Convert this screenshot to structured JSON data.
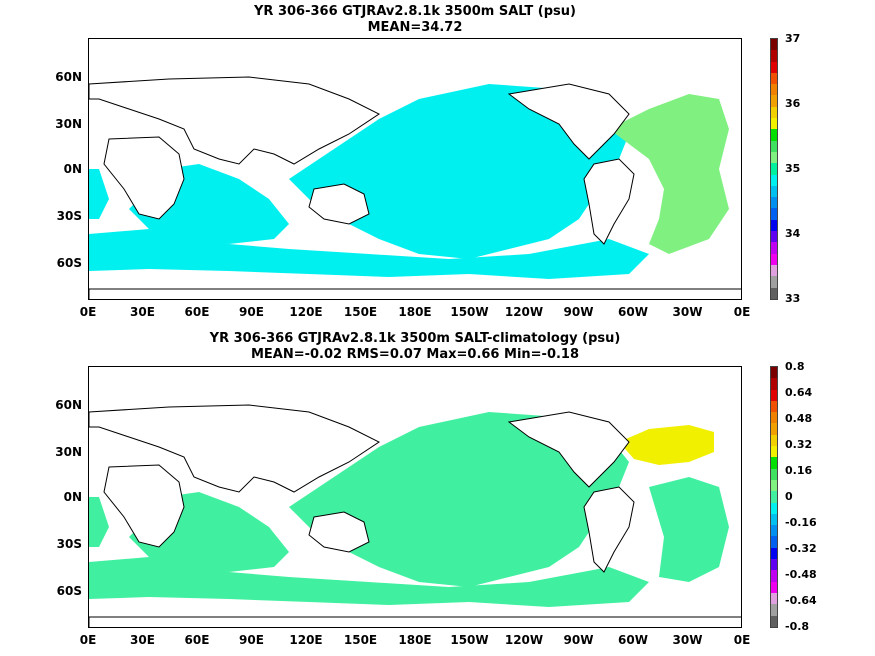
{
  "panels": [
    {
      "title_line1": "YR 306-366 GTJRAv2.8.1k 3500m SALT (psu)",
      "title_line2": "MEAN=34.72",
      "ocean_color": "#00f0f0",
      "atlantic_color": "#80f080",
      "colorbar": {
        "labels": [
          "37",
          "36",
          "35",
          "34",
          "33"
        ],
        "colors": [
          "#7a0000",
          "#b00000",
          "#e00000",
          "#f05000",
          "#f08000",
          "#f0a000",
          "#f0d000",
          "#f0f000",
          "#00e000",
          "#40e060",
          "#80f080",
          "#00f0a0",
          "#00f0f0",
          "#00c0f0",
          "#0090f0",
          "#0060f0",
          "#0000f0",
          "#6000f0",
          "#c000f0",
          "#f000f0",
          "#e0a0e0",
          "#a0a0a0",
          "#606060"
        ]
      }
    },
    {
      "title_line1": "YR 306-366 GTJRAv2.8.1k 3500m SALT-climatology (psu)",
      "title_line2": "MEAN=-0.02   RMS=0.07   Max=0.66   Min=-0.18",
      "ocean_color": "#40f0a0",
      "atlantic_color": "#f0f000",
      "colorbar": {
        "labels": [
          "0.8",
          "0.64",
          "0.48",
          "0.32",
          "0.16",
          "0",
          "-0.16",
          "-0.32",
          "-0.48",
          "-0.64",
          "-0.8"
        ],
        "colors": [
          "#7a0000",
          "#b00000",
          "#e00000",
          "#f05000",
          "#f08000",
          "#f0a000",
          "#f0d000",
          "#f0f000",
          "#00e000",
          "#40e060",
          "#80f080",
          "#40f0a0",
          "#00f0f0",
          "#00c0f0",
          "#0090f0",
          "#0060f0",
          "#0000f0",
          "#6000f0",
          "#c000f0",
          "#f000f0",
          "#e0a0e0",
          "#a0a0a0",
          "#606060"
        ]
      }
    }
  ],
  "lat_labels": [
    "60N",
    "30N",
    "0N",
    "30S",
    "60S"
  ],
  "lon_labels": [
    "0E",
    "30E",
    "60E",
    "90E",
    "120E",
    "150E",
    "180E",
    "150W",
    "120W",
    "90W",
    "60W",
    "30W",
    "0E"
  ]
}
